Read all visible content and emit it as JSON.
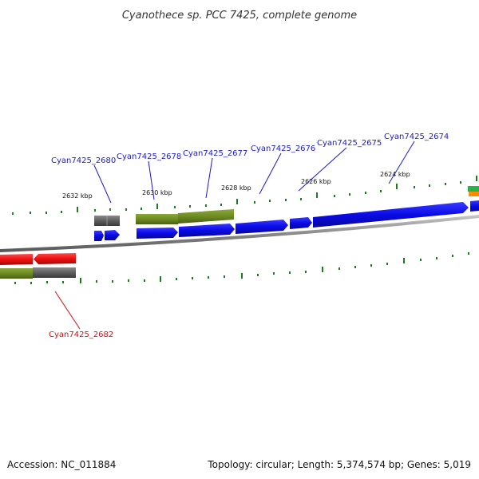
{
  "title": "Cyanothece sp. PCC 7425, complete genome",
  "footer": {
    "accession": "Accession: NC_011884",
    "summary": "Topology: circular; Length: 5,374,574 bp; Genes: 5,019"
  },
  "scale_labels": [
    "2632 kbp",
    "2630 kbp",
    "2628 kbp",
    "2626 kbp",
    "2624 kbp"
  ],
  "gene_labels": [
    "Cyan7425_2680",
    "Cyan7425_2678",
    "Cyan7425_2677",
    "Cyan7425_2676",
    "Cyan7425_2675",
    "Cyan7425_2674",
    "Cyan7425_2682"
  ],
  "colors": {
    "forward_cds": "#0a0ae6",
    "reverse_cds": "#ee1111",
    "forward_gene": "#6e8b22",
    "reverse_gene": "#666666",
    "label_blue": "#1a1acc",
    "label_red": "#cc1111",
    "tick": "#1e7a1e",
    "backbone": "#8a8a8a"
  }
}
